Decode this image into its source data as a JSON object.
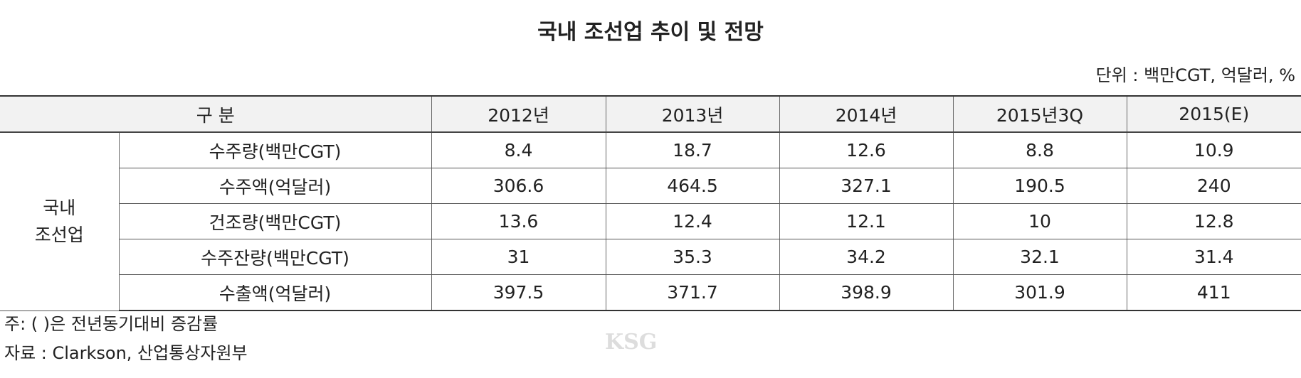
{
  "title": "국내 조선업 추이 및 전망",
  "unit": "단위 : 백만CGT, 억달러, %",
  "table": {
    "header": [
      "구 분",
      "2012년",
      "2013년",
      "2014년",
      "2015년3Q",
      "2015(E)"
    ],
    "group": [
      "국내",
      "조선업"
    ],
    "rows": [
      {
        "label": "수주량(백만CGT)",
        "values": [
          8.4,
          18.7,
          12.6,
          8.8,
          10.9
        ]
      },
      {
        "label": "수주액(억달러)",
        "values": [
          306.6,
          464.5,
          327.1,
          190.5,
          240
        ]
      },
      {
        "label": "건조량(백만CGT)",
        "values": [
          13.6,
          12.4,
          12.1,
          10,
          12.8
        ]
      },
      {
        "label": "수주잔량(백만CGT)",
        "values": [
          31,
          35.3,
          34.2,
          32.1,
          31.4
        ]
      },
      {
        "label": "수출액(억달러)",
        "values": [
          397.5,
          371.7,
          398.9,
          301.9,
          411
        ]
      }
    ]
  },
  "notes": [
    "주: (   )은 전년동기대비 증감률",
    "자료 : Clarkson, 산업통상자원부"
  ],
  "watermark": "KSG"
}
